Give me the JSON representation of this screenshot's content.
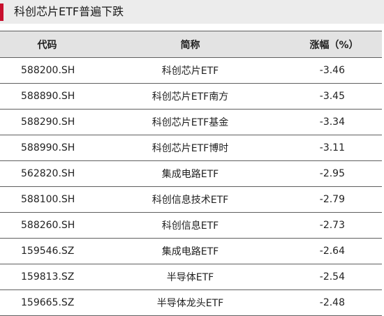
{
  "title": "科创芯片ETF普遍下跌",
  "colors": {
    "accent": "#c8102e",
    "header_bg": "#e3e3e3",
    "title_bg": "#ececec"
  },
  "table": {
    "headers": [
      "代码",
      "简称",
      "涨幅（%）"
    ],
    "rows": [
      {
        "code": "588200.SH",
        "name": "科创芯片ETF",
        "change": "-3.46"
      },
      {
        "code": "588890.SH",
        "name": "科创芯片ETF南方",
        "change": "-3.45"
      },
      {
        "code": "588290.SH",
        "name": "科创芯片ETF基金",
        "change": "-3.34"
      },
      {
        "code": "588990.SH",
        "name": "科创芯片ETF博时",
        "change": "-3.11"
      },
      {
        "code": "562820.SH",
        "name": "集成电路ETF",
        "change": "-2.95"
      },
      {
        "code": "588100.SH",
        "name": "科创信息技术ETF",
        "change": "-2.79"
      },
      {
        "code": "588260.SH",
        "name": "科创信息ETF",
        "change": "-2.73"
      },
      {
        "code": "159546.SZ",
        "name": "集成电路ETF",
        "change": "-2.64"
      },
      {
        "code": "159813.SZ",
        "name": "半导体ETF",
        "change": "-2.54"
      },
      {
        "code": "159665.SZ",
        "name": "半导体龙头ETF",
        "change": "-2.48"
      }
    ]
  }
}
